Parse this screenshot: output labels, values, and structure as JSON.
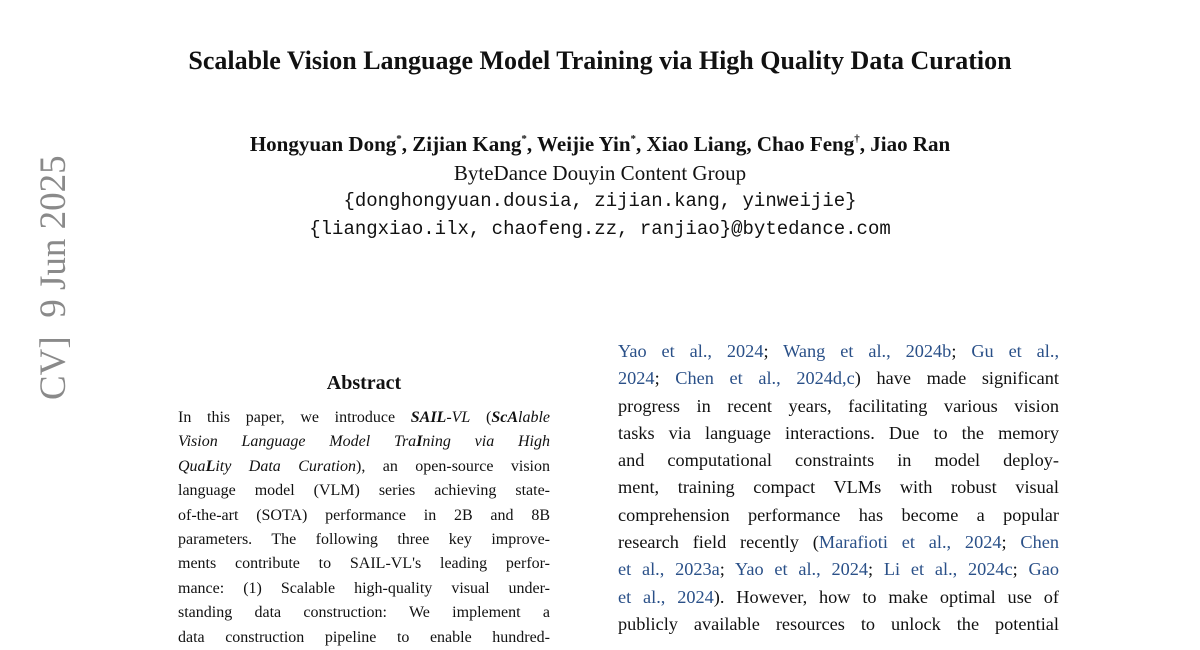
{
  "title": "Scalable Vision Language Model Training via High Quality Data Curation",
  "authors": [
    {
      "text": "Hongyuan Dong",
      "style": "normal"
    },
    {
      "text": "*",
      "style": "sup"
    },
    {
      "text": ", Zijian Kang",
      "style": "normal"
    },
    {
      "text": "*",
      "style": "sup"
    },
    {
      "text": ", Weijie Yin",
      "style": "normal"
    },
    {
      "text": "*",
      "style": "sup"
    },
    {
      "text": ", Xiao Liang, Chao Feng",
      "style": "normal"
    },
    {
      "text": "†",
      "style": "sup"
    },
    {
      "text": ", Jiao Ran",
      "style": "normal"
    }
  ],
  "affiliation": "ByteDance Douyin Content Group",
  "emails": [
    "{donghongyuan.dousia, zijian.kang, yinweijie}",
    "{liangxiao.ilx, chaofeng.zz, ranjiao}@bytedance.com"
  ],
  "side_stamp": "CV]  9 Jun 2025",
  "abstract": {
    "heading": "Abstract",
    "lines": [
      [
        {
          "text": "In this paper, we introduce ",
          "style": "normal"
        },
        {
          "text": "SAIL",
          "style": "bi"
        },
        {
          "text": "-VL",
          "style": "i"
        },
        {
          "text": " (",
          "style": "normal"
        },
        {
          "text": "ScA",
          "style": "bi"
        },
        {
          "text": "lable",
          "style": "i"
        }
      ],
      [
        {
          "text": "Vision Language Model Tra",
          "style": "i"
        },
        {
          "text": "I",
          "style": "bi"
        },
        {
          "text": "ning via High",
          "style": "i"
        }
      ],
      [
        {
          "text": "Qua",
          "style": "i"
        },
        {
          "text": "L",
          "style": "bi"
        },
        {
          "text": "ity Data Curation",
          "style": "i"
        },
        {
          "text": "), an open-source vision",
          "style": "normal"
        }
      ],
      [
        {
          "text": "language model (VLM) series achieving state-",
          "style": "normal"
        }
      ],
      [
        {
          "text": "of-the-art (SOTA) performance in 2B and 8B",
          "style": "normal"
        }
      ],
      [
        {
          "text": "parameters. The following three key improve-",
          "style": "normal"
        }
      ],
      [
        {
          "text": "ments contribute to SAIL-VL's leading perfor-",
          "style": "normal"
        }
      ],
      [
        {
          "text": "mance: (1) Scalable high-quality visual under-",
          "style": "normal"
        }
      ],
      [
        {
          "text": "standing data construction: We implement a",
          "style": "normal"
        }
      ],
      [
        {
          "text": "data construction pipeline to enable hundred-",
          "style": "normal"
        }
      ]
    ]
  },
  "body": {
    "lines": [
      [
        {
          "text": "Yao et al., 2024",
          "style": "cite"
        },
        {
          "text": "; ",
          "style": "normal"
        },
        {
          "text": "Wang et al., 2024b",
          "style": "cite"
        },
        {
          "text": "; ",
          "style": "normal"
        },
        {
          "text": "Gu et al.,",
          "style": "cite"
        }
      ],
      [
        {
          "text": "2024",
          "style": "cite"
        },
        {
          "text": "; ",
          "style": "normal"
        },
        {
          "text": "Chen et al., 2024d",
          "style": "cite"
        },
        {
          "text": ",c",
          "style": "cite"
        },
        {
          "text": ") have made significant",
          "style": "normal"
        }
      ],
      [
        {
          "text": "progress in recent years, facilitating various vision",
          "style": "normal"
        }
      ],
      [
        {
          "text": "tasks via language interactions. Due to the memory",
          "style": "normal"
        }
      ],
      [
        {
          "text": "and computational constraints in model deploy-",
          "style": "normal"
        }
      ],
      [
        {
          "text": "ment, training compact VLMs with robust visual",
          "style": "normal"
        }
      ],
      [
        {
          "text": "comprehension performance has become a popular",
          "style": "normal"
        }
      ],
      [
        {
          "text": "research field recently (",
          "style": "normal"
        },
        {
          "text": "Marafioti et al., 2024",
          "style": "cite"
        },
        {
          "text": "; ",
          "style": "normal"
        },
        {
          "text": "Chen",
          "style": "cite"
        }
      ],
      [
        {
          "text": "et al., 2023a",
          "style": "cite"
        },
        {
          "text": "; ",
          "style": "normal"
        },
        {
          "text": "Yao et al., 2024",
          "style": "cite"
        },
        {
          "text": "; ",
          "style": "normal"
        },
        {
          "text": "Li et al., 2024c",
          "style": "cite"
        },
        {
          "text": "; ",
          "style": "normal"
        },
        {
          "text": "Gao",
          "style": "cite"
        }
      ],
      [
        {
          "text": "et al., 2024",
          "style": "cite"
        },
        {
          "text": "). However, how to make optimal use of",
          "style": "normal"
        }
      ],
      [
        {
          "text": "publicly available resources to unlock the potential",
          "style": "normal"
        }
      ]
    ]
  }
}
